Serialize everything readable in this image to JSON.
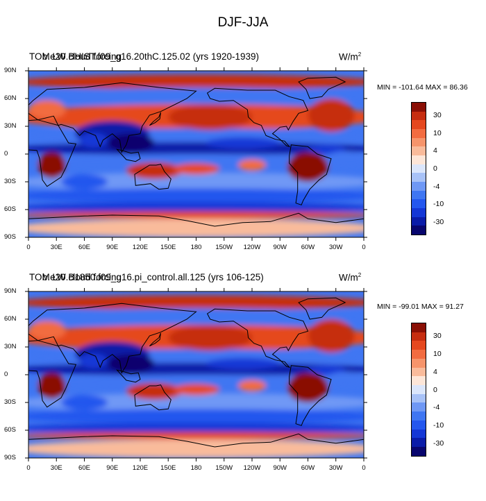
{
  "figure_title": "DJF-JJA",
  "units_label": "W/m",
  "units_exp": "2",
  "colormap": [
    "#08066e",
    "#0a1ca8",
    "#1437d6",
    "#2457ee",
    "#3f76f2",
    "#6f98f5",
    "#a8c2f7",
    "#dbe6fb",
    "#fde6d8",
    "#f9bb9b",
    "#f6946b",
    "#f26c41",
    "#e5481f",
    "#c62d10",
    "#8a0f05"
  ],
  "contour_labels": [
    "30",
    "10",
    "4",
    "0",
    "-4",
    "-10",
    "-30"
  ],
  "panels": [
    {
      "title_left": "TOM LW cloud forcing",
      "title_case": "b.e20.BHIST.f09_g16.20thC.125.02 (yrs 1920-1939)",
      "min_max": "MIN = -101.64 MAX =  86.36"
    },
    {
      "title_left": "TOM LW cloud forcing",
      "title_case": "b.e20.B1850.f09_g16.pi_control.all.125 (yrs 106-125)",
      "min_max": "MIN = -99.01 MAX =  91.27"
    }
  ],
  "lat_ticks": [
    "90N",
    "60N",
    "30N",
    "0",
    "30S",
    "60S",
    "90S"
  ],
  "lon_ticks": [
    "0",
    "30E",
    "60E",
    "90E",
    "120E",
    "150E",
    "180",
    "150W",
    "120W",
    "90W",
    "60W",
    "30W",
    "0"
  ],
  "chart_data": {
    "type": "heatmap",
    "title": "DJF-JJA",
    "variable": "TOM LW cloud forcing",
    "units": "W/m^2",
    "x": "longitude 0 to 360",
    "y": "latitude 90S to 90N",
    "contour_levels": [
      -30,
      -10,
      -4,
      0,
      4,
      10,
      30
    ],
    "panels": [
      {
        "case": "b.e20.BHIST.f09_g16.20thC.125.02 (yrs 1920-1939)",
        "min": -101.64,
        "max": 86.36
      },
      {
        "case": "b.e20.B1850.f09_g16.pi_control.all.125 (yrs 106-125)",
        "min": -99.01,
        "max": 91.27
      }
    ]
  }
}
